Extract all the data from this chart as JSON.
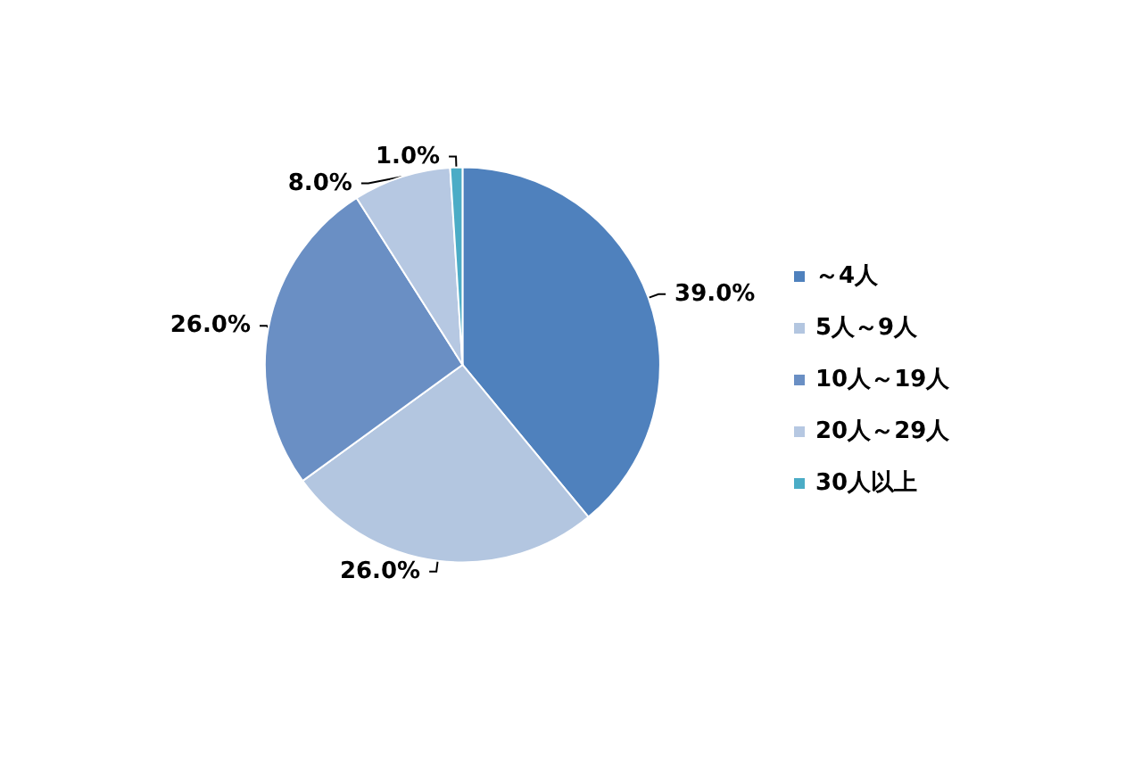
{
  "chart_data": {
    "type": "pie",
    "categories": [
      "～4人",
      "5人～9人",
      "10人～19人",
      "20人～29人",
      "30人以上"
    ],
    "values": [
      39,
      26,
      26,
      8,
      1
    ],
    "colors": [
      "#4f81bd",
      "#b3c6e0",
      "#6a8fc4",
      "#b6c8e2",
      "#4bacc6"
    ],
    "value_labels": [
      "39.0%",
      "26.0%",
      "26.0%",
      "8.0%",
      "1.0%"
    ],
    "legend": "right"
  }
}
